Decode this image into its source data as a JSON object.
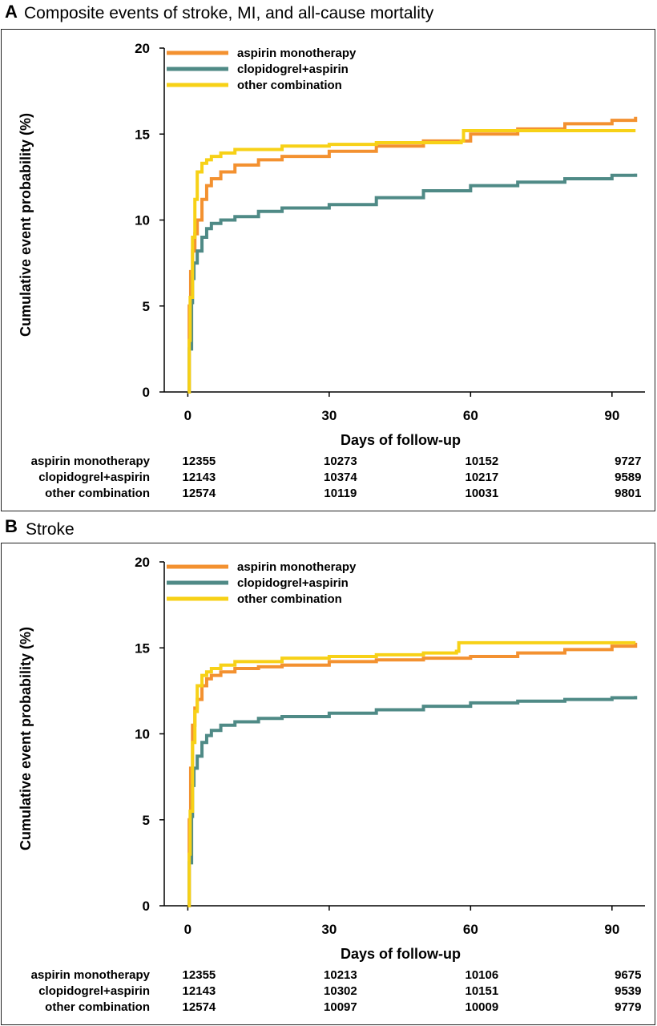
{
  "chart_data": [
    {
      "type": "line",
      "panel_letter": "A",
      "title": "Composite events of stroke, MI, and all-cause mortality",
      "xlabel": "Days of follow-up",
      "ylabel": "Cumulative event probability (%)",
      "xlim": [
        -5,
        97
      ],
      "ylim": [
        0,
        20
      ],
      "xticks": [
        0,
        30,
        60,
        90
      ],
      "yticks": [
        0,
        5,
        10,
        15,
        20
      ],
      "grid": false,
      "legend_position": "top-left",
      "series": [
        {
          "name": "aspirin monotherapy",
          "color": "#f39130",
          "x": [
            0,
            0.3,
            0.6,
            1,
            1.5,
            2,
            3,
            4,
            5,
            7,
            10,
            15,
            20,
            30,
            40,
            50,
            60,
            70,
            80,
            90,
            95
          ],
          "y": [
            0,
            5,
            7,
            8.2,
            9.2,
            10,
            11.2,
            12,
            12.4,
            12.8,
            13.2,
            13.5,
            13.7,
            14,
            14.3,
            14.6,
            15,
            15.3,
            15.6,
            15.8,
            16
          ]
        },
        {
          "name": "clopidogrel+aspirin",
          "color": "#4f8a86",
          "x": [
            0,
            0.3,
            0.8,
            1,
            1.3,
            2,
            3,
            4,
            5,
            7,
            10,
            15,
            20,
            30,
            40,
            50,
            60,
            70,
            80,
            90,
            95
          ],
          "y": [
            0,
            2.5,
            5.2,
            6.6,
            7.5,
            8.2,
            9,
            9.5,
            9.8,
            10,
            10.2,
            10.5,
            10.7,
            10.9,
            11.3,
            11.7,
            12,
            12.2,
            12.4,
            12.6,
            12.7
          ]
        },
        {
          "name": "other combination",
          "color": "#f7d117",
          "x": [
            0,
            0.3,
            0.5,
            1,
            1.5,
            2,
            3,
            4,
            5,
            7,
            10,
            20,
            30,
            40,
            50,
            58,
            58.5,
            95
          ],
          "y": [
            0,
            3,
            5.5,
            9,
            11.2,
            12.8,
            13.3,
            13.5,
            13.7,
            13.9,
            14.1,
            14.3,
            14.4,
            14.5,
            14.5,
            14.6,
            15.2,
            15.2
          ]
        }
      ],
      "risk_table": {
        "times": [
          0,
          30,
          60,
          90
        ],
        "rows": [
          {
            "label": "aspirin monotherapy",
            "values": [
              "12355",
              "10273",
              "10152",
              "9727"
            ]
          },
          {
            "label": "clopidogrel+aspirin",
            "values": [
              "12143",
              "10374",
              "10217",
              "9589"
            ]
          },
          {
            "label": "other combination",
            "values": [
              "12574",
              "10119",
              "10031",
              "9801"
            ]
          }
        ]
      }
    },
    {
      "type": "line",
      "panel_letter": "B",
      "title": "Stroke",
      "xlabel": "Days of follow-up",
      "ylabel": "Cumulative event probability (%)",
      "xlim": [
        -5,
        97
      ],
      "ylim": [
        0,
        20
      ],
      "xticks": [
        0,
        30,
        60,
        90
      ],
      "yticks": [
        0,
        5,
        10,
        15,
        20
      ],
      "grid": false,
      "legend_position": "top-left",
      "series": [
        {
          "name": "aspirin monotherapy",
          "color": "#f39130",
          "x": [
            0,
            0.3,
            0.6,
            1,
            1.5,
            2,
            3,
            4,
            5,
            7,
            10,
            15,
            20,
            30,
            40,
            50,
            60,
            70,
            80,
            90,
            95
          ],
          "y": [
            0,
            5,
            8,
            10.5,
            11.5,
            12,
            12.8,
            13.2,
            13.4,
            13.6,
            13.8,
            13.9,
            14,
            14.2,
            14.3,
            14.4,
            14.5,
            14.7,
            14.9,
            15.1,
            15.3
          ]
        },
        {
          "name": "clopidogrel+aspirin",
          "color": "#4f8a86",
          "x": [
            0,
            0.3,
            0.8,
            1,
            1.3,
            2,
            3,
            4,
            5,
            7,
            10,
            15,
            20,
            30,
            40,
            50,
            60,
            70,
            80,
            90,
            95
          ],
          "y": [
            0,
            2.5,
            5.2,
            7,
            8,
            8.7,
            9.5,
            9.9,
            10.2,
            10.5,
            10.7,
            10.9,
            11,
            11.2,
            11.4,
            11.6,
            11.8,
            11.9,
            12,
            12.1,
            12.2
          ]
        },
        {
          "name": "other combination",
          "color": "#f7d117",
          "x": [
            0,
            0.3,
            0.5,
            1,
            1.5,
            2,
            3,
            4,
            5,
            7,
            10,
            20,
            30,
            40,
            50,
            57,
            57.5,
            95
          ],
          "y": [
            0,
            3,
            5.5,
            9.5,
            11.3,
            12.8,
            13.4,
            13.6,
            13.8,
            14,
            14.2,
            14.4,
            14.5,
            14.6,
            14.7,
            14.8,
            15.3,
            15.3
          ]
        }
      ],
      "risk_table": {
        "times": [
          0,
          30,
          60,
          90
        ],
        "rows": [
          {
            "label": "aspirin monotherapy",
            "values": [
              "12355",
              "10213",
              "10106",
              "9675"
            ]
          },
          {
            "label": "clopidogrel+aspirin",
            "values": [
              "12143",
              "10302",
              "10151",
              "9539"
            ]
          },
          {
            "label": "other combination",
            "values": [
              "12574",
              "10097",
              "10009",
              "9779"
            ]
          }
        ]
      }
    }
  ]
}
